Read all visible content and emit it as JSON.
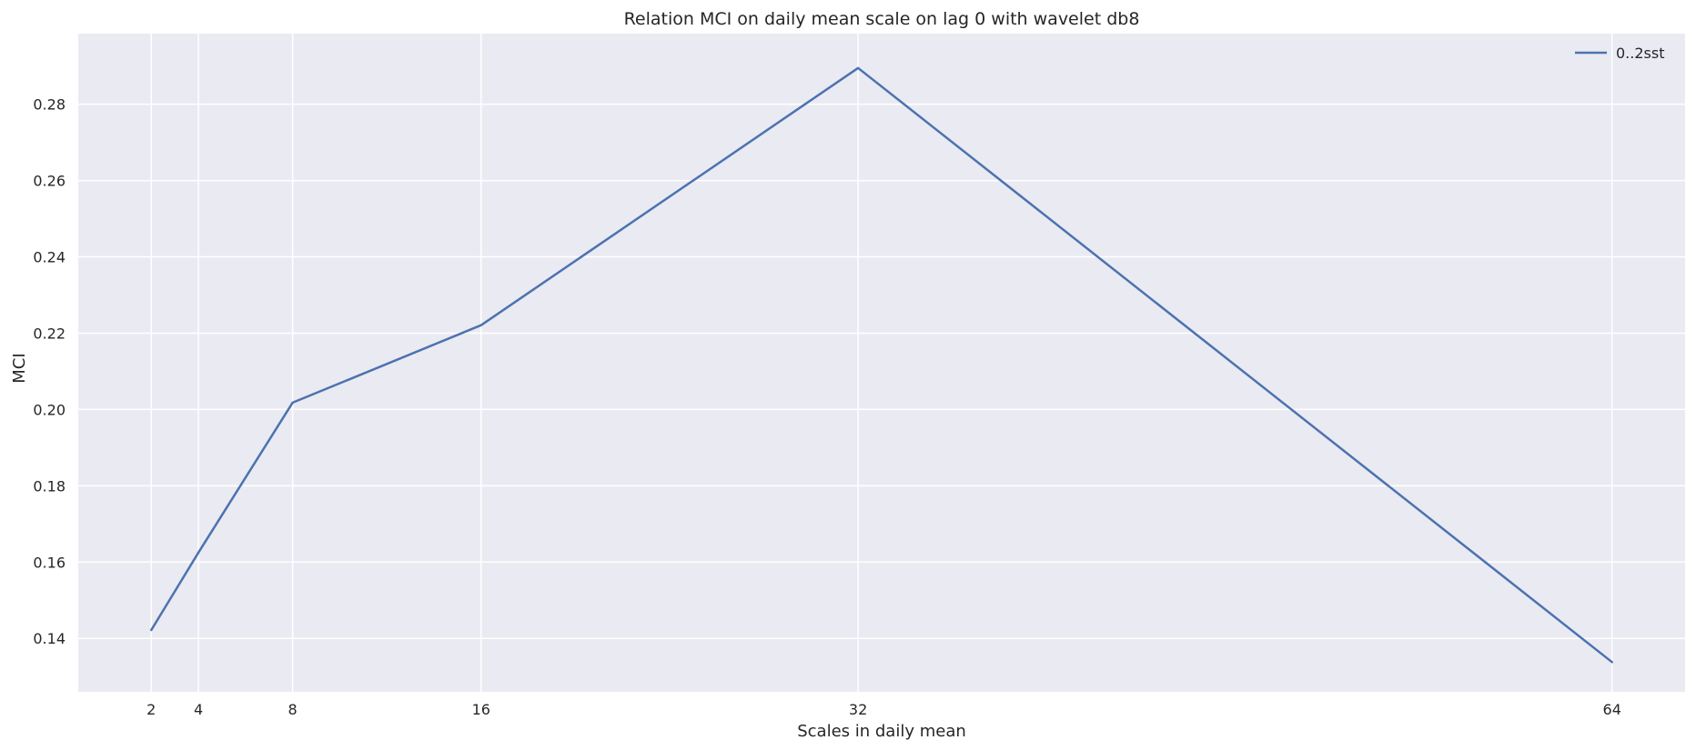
{
  "chart_data": {
    "type": "line",
    "title": "Relation MCI on daily mean scale on lag 0 with wavelet db8",
    "xlabel": "Scales in daily mean",
    "ylabel": "MCI",
    "x": [
      2,
      4,
      8,
      16,
      32,
      64
    ],
    "x_tick_labels": [
      "2",
      "4",
      "8",
      "16",
      "32",
      "64"
    ],
    "y_ticks": [
      0.14,
      0.16,
      0.18,
      0.2,
      0.22,
      0.24,
      0.26,
      0.28
    ],
    "y_tick_labels": [
      "0.14",
      "0.16",
      "0.18",
      "0.20",
      "0.22",
      "0.24",
      "0.26",
      "0.28"
    ],
    "xlim": [
      -1.1,
      67.1
    ],
    "ylim": [
      0.126,
      0.2985
    ],
    "grid": true,
    "legend_position": "top-right",
    "series": [
      {
        "name": "0..2sst",
        "color": "#4c72b0",
        "values": [
          0.1422,
          0.1625,
          0.2018,
          0.2221,
          0.2895,
          0.1338
        ]
      }
    ],
    "background_color": "#eaeaf2",
    "grid_color": "#ffffff"
  }
}
